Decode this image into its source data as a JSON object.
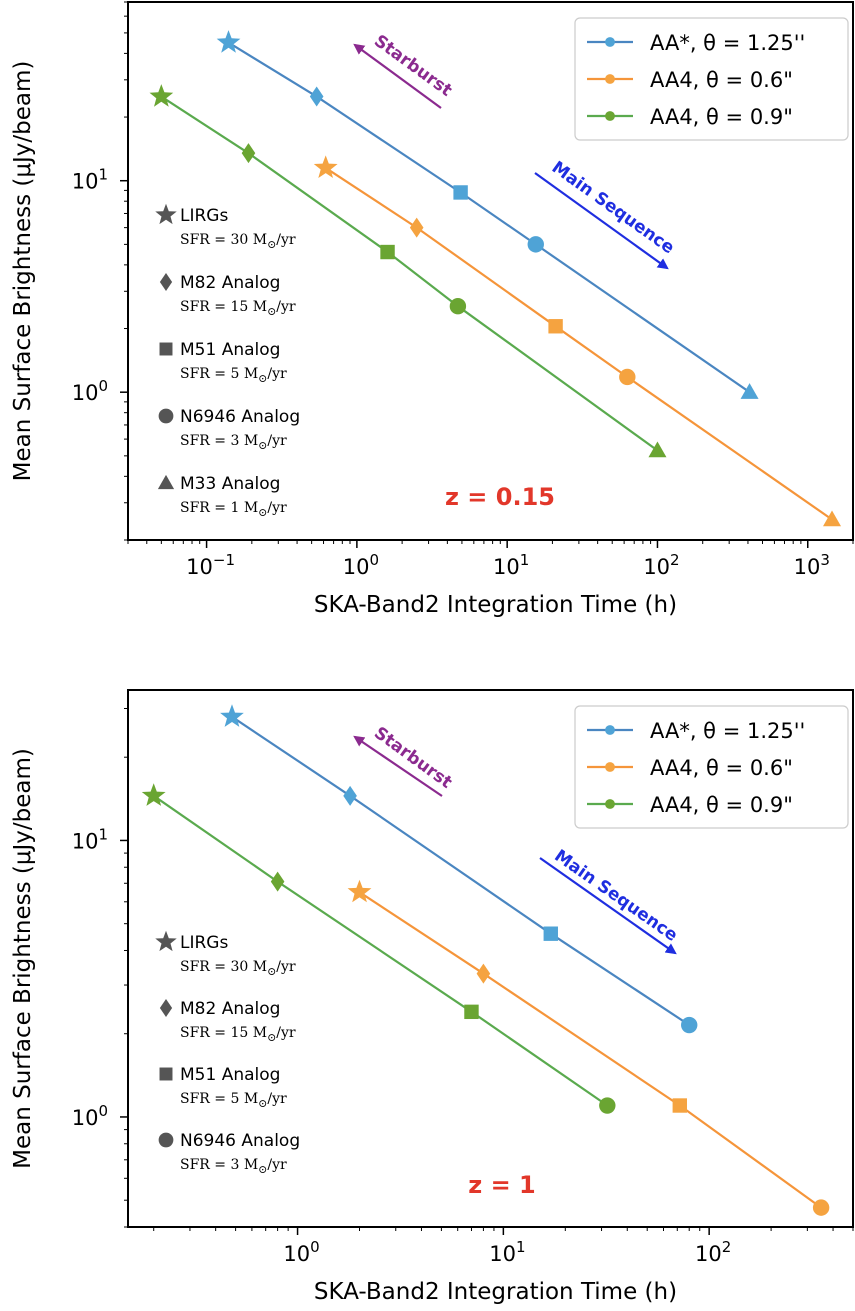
{
  "chart_data": [
    {
      "type": "line",
      "xscale": "log",
      "yscale": "log",
      "xlim": [
        0.03,
        2000
      ],
      "ylim": [
        0.2,
        70
      ],
      "xticks": [
        0.1,
        1,
        10,
        100,
        1000
      ],
      "xtick_labels": [
        {
          "base": "10",
          "exp": "−1"
        },
        {
          "base": "10",
          "exp": "0"
        },
        {
          "base": "10",
          "exp": "1"
        },
        {
          "base": "10",
          "exp": "2"
        },
        {
          "base": "10",
          "exp": "3"
        }
      ],
      "yticks": [
        1,
        10
      ],
      "ytick_labels": [
        {
          "base": "10",
          "exp": "0"
        },
        {
          "base": "10",
          "exp": "1"
        }
      ],
      "xlabel": "SKA-Band2 Integration Time (h)",
      "ylabel": "Mean Surface Brightness (μJy/beam)",
      "redshift_label": "z = 0.15",
      "legend_position": "top-right",
      "series": [
        {
          "name": "AA*, θ = 1.25''",
          "color": "#4a86c1",
          "marker_color": "#4fa3d6",
          "points": [
            [
              0.14,
              45
            ],
            [
              0.54,
              25
            ],
            [
              4.9,
              8.8
            ],
            [
              15.5,
              5.0
            ],
            [
              410,
              1.0
            ]
          ],
          "markers": [
            "star",
            "diamond",
            "square",
            "circle",
            "triangle"
          ]
        },
        {
          "name": "AA4, θ = 0.6\"",
          "color": "#f5953a",
          "marker_color": "#f5a340",
          "points": [
            [
              0.62,
              11.5
            ],
            [
              2.5,
              6.0
            ],
            [
              21,
              2.05
            ],
            [
              63,
              1.18
            ],
            [
              1450,
              0.25
            ]
          ],
          "markers": [
            "star",
            "diamond",
            "square",
            "circle",
            "triangle"
          ]
        },
        {
          "name": "AA4, θ = 0.9\"",
          "color": "#5aaa4e",
          "marker_color": "#6aa532",
          "points": [
            [
              0.05,
              25
            ],
            [
              0.19,
              13.5
            ],
            [
              1.6,
              4.6
            ],
            [
              4.7,
              2.55
            ],
            [
              100,
              0.53
            ]
          ],
          "markers": [
            "star",
            "diamond",
            "square",
            "circle",
            "triangle"
          ]
        }
      ],
      "annotations": {
        "starburst": "Starburst",
        "main_sequence": "Main Sequence"
      },
      "marker_legend": [
        {
          "marker": "star",
          "name": "LIRGs",
          "sfr": "SFR = 30 M",
          "unit": "/yr"
        },
        {
          "marker": "diamond",
          "name": "M82 Analog",
          "sfr": "SFR = 15 M",
          "unit": "/yr"
        },
        {
          "marker": "square",
          "name": "M51 Analog",
          "sfr": "SFR = 5 M",
          "unit": "/yr"
        },
        {
          "marker": "circle",
          "name": "N6946 Analog",
          "sfr": "SFR = 3 M",
          "unit": "/yr"
        },
        {
          "marker": "triangle",
          "name": "M33 Analog",
          "sfr": "SFR = 1 M",
          "unit": "/yr"
        }
      ],
      "colors": {
        "starburst": "#8b2a8f",
        "main_sequence": "#1f2ee0",
        "redshift": "#e2372a"
      }
    },
    {
      "type": "line",
      "xscale": "log",
      "yscale": "log",
      "xlim": [
        0.15,
        500
      ],
      "ylim": [
        0.4,
        35
      ],
      "xticks": [
        1,
        10,
        100
      ],
      "xtick_labels": [
        {
          "base": "10",
          "exp": "0"
        },
        {
          "base": "10",
          "exp": "1"
        },
        {
          "base": "10",
          "exp": "2"
        }
      ],
      "yticks": [
        1,
        10
      ],
      "ytick_labels": [
        {
          "base": "10",
          "exp": "0"
        },
        {
          "base": "10",
          "exp": "1"
        }
      ],
      "xlabel": "SKA-Band2 Integration Time (h)",
      "ylabel": "Mean Surface Brightness (μJy/beam)",
      "redshift_label": "z = 1",
      "legend_position": "top-right",
      "series": [
        {
          "name": "AA*, θ = 1.25''",
          "color": "#4a86c1",
          "marker_color": "#4fa3d6",
          "points": [
            [
              0.48,
              28
            ],
            [
              1.8,
              14.5
            ],
            [
              17,
              4.6
            ],
            [
              80,
              2.15
            ]
          ],
          "markers": [
            "star",
            "diamond",
            "square",
            "circle"
          ]
        },
        {
          "name": "AA4, θ = 0.6\"",
          "color": "#f5953a",
          "marker_color": "#f5a340",
          "points": [
            [
              2.0,
              6.5
            ],
            [
              8.0,
              3.3
            ],
            [
              72,
              1.1
            ],
            [
              350,
              0.47
            ]
          ],
          "markers": [
            "star",
            "diamond",
            "square",
            "circle"
          ]
        },
        {
          "name": "AA4, θ = 0.9\"",
          "color": "#5aaa4e",
          "marker_color": "#6aa532",
          "points": [
            [
              0.2,
              14.5
            ],
            [
              0.8,
              7.1
            ],
            [
              7,
              2.4
            ],
            [
              32,
              1.1
            ]
          ],
          "markers": [
            "star",
            "diamond",
            "square",
            "circle"
          ]
        }
      ],
      "annotations": {
        "starburst": "Starburst",
        "main_sequence": "Main Sequence"
      },
      "marker_legend": [
        {
          "marker": "star",
          "name": "LIRGs",
          "sfr": "SFR = 30 M",
          "unit": "/yr"
        },
        {
          "marker": "diamond",
          "name": "M82 Analog",
          "sfr": "SFR = 15 M",
          "unit": "/yr"
        },
        {
          "marker": "square",
          "name": "M51 Analog",
          "sfr": "SFR = 5 M",
          "unit": "/yr"
        },
        {
          "marker": "circle",
          "name": "N6946 Analog",
          "sfr": "SFR = 3 M",
          "unit": "/yr"
        }
      ],
      "colors": {
        "starburst": "#8b2a8f",
        "main_sequence": "#1f2ee0",
        "redshift": "#e2372a"
      }
    }
  ]
}
